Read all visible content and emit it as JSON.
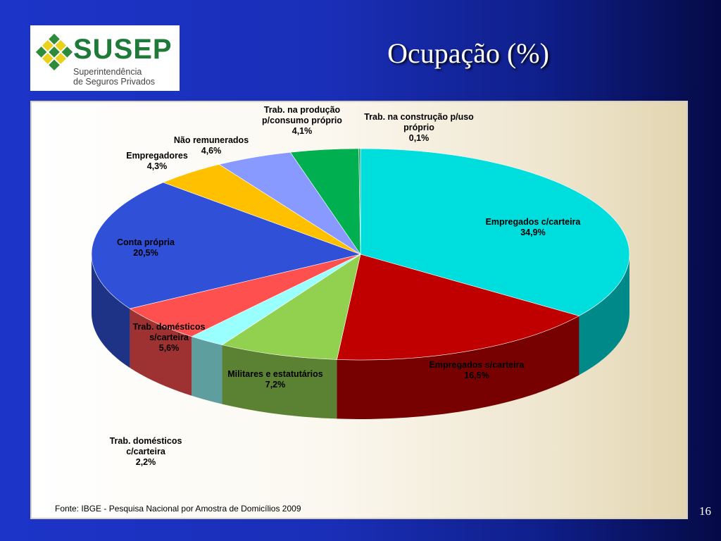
{
  "logo": {
    "name": "SUSEP",
    "line1": "Superintendência",
    "line2": "de Seguros Privados"
  },
  "slide": {
    "title": "Ocupação (%)",
    "page_number": "16"
  },
  "source": "Fonte: IBGE - Pesquisa Nacional por Amostra de Domicílios 2009",
  "chart_data": {
    "type": "pie",
    "title": "",
    "slices": [
      {
        "label": "Empregados c/carteira",
        "value": "34,9%",
        "pct": 34.9,
        "color": "#00dddd"
      },
      {
        "label": "Empregados s/carteira",
        "value": "16,5%",
        "pct": 16.5,
        "color": "#c00000"
      },
      {
        "label": "Militares e estatutários",
        "value": "7,2%",
        "pct": 7.2,
        "color": "#92d050"
      },
      {
        "label": "Trab. domésticos c/carteira",
        "value": "2,2%",
        "pct": 2.2,
        "color": "#99ffff"
      },
      {
        "label": "Trab. domésticos s/carteira",
        "value": "5,6%",
        "pct": 5.6,
        "color": "#ff5050"
      },
      {
        "label": "Conta própria",
        "value": "20,5%",
        "pct": 20.5,
        "color": "#3050d8"
      },
      {
        "label": "Empregadores",
        "value": "4,3%",
        "pct": 4.3,
        "color": "#ffc000"
      },
      {
        "label": "Não remunerados",
        "value": "4,6%",
        "pct": 4.6,
        "color": "#8899ff"
      },
      {
        "label": "Trab. na produção p/consumo próprio",
        "value": "4,1%",
        "pct": 4.1,
        "color": "#00b050"
      },
      {
        "label": "Trab. na construção p/uso próprio",
        "value": "0,1%",
        "pct": 0.1,
        "color": "#339966"
      }
    ]
  }
}
